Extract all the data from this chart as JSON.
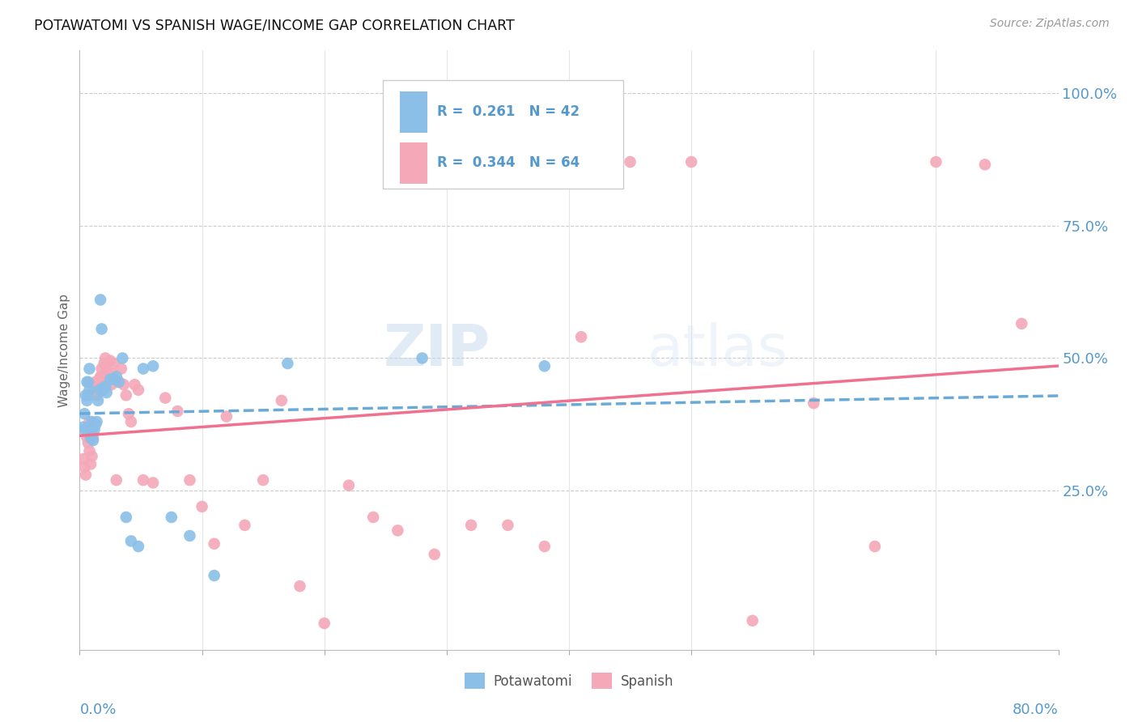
{
  "title": "POTAWATOMI VS SPANISH WAGE/INCOME GAP CORRELATION CHART",
  "source": "Source: ZipAtlas.com",
  "ylabel": "Wage/Income Gap",
  "right_yticks": [
    "25.0%",
    "50.0%",
    "75.0%",
    "100.0%"
  ],
  "right_ytick_vals": [
    0.25,
    0.5,
    0.75,
    1.0
  ],
  "xmin": 0.0,
  "xmax": 0.8,
  "ymin": -0.05,
  "ymax": 1.08,
  "watermark_zip": "ZIP",
  "watermark_atlas": "atlas",
  "legend_line1": "R =  0.261   N = 42",
  "legend_line2": "R =  0.344   N = 64",
  "potawatomi_color": "#8bbfe8",
  "spanish_color": "#f4a8b8",
  "trend_potawatomi_color": "#6aaad8",
  "trend_spanish_color": "#f07090",
  "potawatomi_x": [
    0.003,
    0.004,
    0.004,
    0.005,
    0.006,
    0.006,
    0.007,
    0.007,
    0.008,
    0.008,
    0.009,
    0.01,
    0.01,
    0.011,
    0.011,
    0.012,
    0.013,
    0.014,
    0.015,
    0.016,
    0.017,
    0.018,
    0.019,
    0.02,
    0.021,
    0.022,
    0.025,
    0.028,
    0.03,
    0.032,
    0.035,
    0.038,
    0.042,
    0.048,
    0.052,
    0.06,
    0.075,
    0.09,
    0.11,
    0.17,
    0.28,
    0.38
  ],
  "potawatomi_y": [
    0.37,
    0.365,
    0.395,
    0.43,
    0.455,
    0.42,
    0.43,
    0.455,
    0.44,
    0.48,
    0.35,
    0.355,
    0.38,
    0.345,
    0.37,
    0.365,
    0.375,
    0.38,
    0.42,
    0.44,
    0.61,
    0.555,
    0.44,
    0.445,
    0.445,
    0.435,
    0.46,
    0.46,
    0.465,
    0.455,
    0.5,
    0.2,
    0.155,
    0.145,
    0.48,
    0.485,
    0.2,
    0.165,
    0.09,
    0.49,
    0.5,
    0.485
  ],
  "spanish_x": [
    0.003,
    0.004,
    0.005,
    0.006,
    0.007,
    0.008,
    0.008,
    0.009,
    0.01,
    0.011,
    0.012,
    0.013,
    0.014,
    0.015,
    0.016,
    0.017,
    0.018,
    0.019,
    0.02,
    0.021,
    0.022,
    0.023,
    0.025,
    0.026,
    0.027,
    0.028,
    0.03,
    0.032,
    0.034,
    0.036,
    0.038,
    0.04,
    0.042,
    0.045,
    0.048,
    0.052,
    0.06,
    0.07,
    0.08,
    0.09,
    0.1,
    0.11,
    0.12,
    0.135,
    0.15,
    0.165,
    0.18,
    0.2,
    0.22,
    0.24,
    0.26,
    0.29,
    0.32,
    0.35,
    0.38,
    0.41,
    0.45,
    0.5,
    0.55,
    0.6,
    0.65,
    0.7,
    0.74,
    0.77
  ],
  "spanish_y": [
    0.31,
    0.295,
    0.28,
    0.35,
    0.34,
    0.325,
    0.38,
    0.3,
    0.315,
    0.35,
    0.44,
    0.455,
    0.43,
    0.445,
    0.46,
    0.465,
    0.48,
    0.46,
    0.49,
    0.5,
    0.475,
    0.47,
    0.495,
    0.45,
    0.47,
    0.49,
    0.27,
    0.455,
    0.48,
    0.45,
    0.43,
    0.395,
    0.38,
    0.45,
    0.44,
    0.27,
    0.265,
    0.425,
    0.4,
    0.27,
    0.22,
    0.15,
    0.39,
    0.185,
    0.27,
    0.42,
    0.07,
    0.0,
    0.26,
    0.2,
    0.175,
    0.13,
    0.185,
    0.185,
    0.145,
    0.54,
    0.87,
    0.87,
    0.005,
    0.415,
    0.145,
    0.87,
    0.865,
    0.565
  ]
}
